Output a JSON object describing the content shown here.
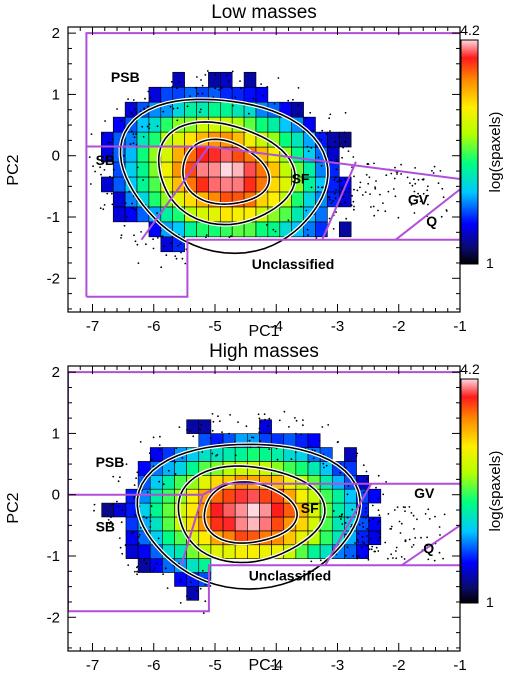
{
  "chart_data": [
    {
      "type": "heatmap",
      "title": "Low masses",
      "xlabel": "PC1",
      "ylabel": "PC2",
      "xlim": [
        -7.4,
        -1.0
      ],
      "ylim": [
        -2.55,
        2.1
      ],
      "xticks": [
        "-7",
        "-6",
        "-5",
        "-4",
        "-3",
        "-2",
        "-1"
      ],
      "yticks": [
        "-2",
        "-1",
        "0",
        "1",
        "2"
      ],
      "colorbar": {
        "label": "log(spaxels)",
        "min_label": "1",
        "max_label": "4.2",
        "min": 1,
        "max": 4.2
      },
      "density_peak": {
        "x": -4.85,
        "y": -0.28
      },
      "regions": [
        {
          "name": "PSB",
          "label_x": -6.7,
          "label_y": 1.2
        },
        {
          "name": "SB",
          "label_x": -6.95,
          "label_y": -0.15
        },
        {
          "name": "SF",
          "label_x": -3.75,
          "label_y": -0.45
        },
        {
          "name": "GV",
          "label_x": -1.85,
          "label_y": -0.8
        },
        {
          "name": "Q",
          "label_x": -1.55,
          "label_y": -1.15
        },
        {
          "name": "Unclassified",
          "label_x": -4.4,
          "label_y": -1.85
        }
      ],
      "boundaries": [
        {
          "kind": "outer",
          "points": [
            [
              -7.1,
              -2.3
            ],
            [
              -7.1,
              2.0
            ],
            [
              -1.0,
              2.0
            ]
          ]
        },
        {
          "kind": "lower-left",
          "points": [
            [
              -7.1,
              -2.3
            ],
            [
              -5.45,
              -2.3
            ],
            [
              -5.45,
              -1.37
            ],
            [
              -1.0,
              -1.37
            ]
          ]
        },
        {
          "kind": "psb-sb",
          "points": [
            [
              -7.1,
              0.15
            ],
            [
              -5.1,
              0.15
            ]
          ]
        },
        {
          "kind": "sf-top",
          "points": [
            [
              -5.1,
              0.15
            ],
            [
              -1.0,
              -0.38
            ]
          ]
        },
        {
          "kind": "sf-left",
          "points": [
            [
              -5.1,
              0.15
            ],
            [
              -6.2,
              -1.37
            ]
          ]
        },
        {
          "kind": "sf-gv",
          "points": [
            [
              -3.25,
              -1.37
            ],
            [
              -2.7,
              -0.1
            ]
          ]
        },
        {
          "kind": "gv-q",
          "points": [
            [
              -2.05,
              -1.37
            ],
            [
              -1.0,
              -0.55
            ]
          ]
        }
      ]
    },
    {
      "type": "heatmap",
      "title": "High masses",
      "xlabel": "PC1",
      "ylabel": "PC2",
      "xlim": [
        -7.4,
        -1.0
      ],
      "ylim": [
        -2.55,
        2.1
      ],
      "xticks": [
        "-7",
        "-6",
        "-5",
        "-4",
        "-3",
        "-2",
        "-1"
      ],
      "yticks": [
        "-2",
        "-1",
        "0",
        "1",
        "2"
      ],
      "colorbar": {
        "label": "log(spaxels)",
        "min_label": "1",
        "max_label": "4.2",
        "min": 1,
        "max": 4.2
      },
      "density_peak": {
        "x": -4.45,
        "y": -0.3
      },
      "regions": [
        {
          "name": "PSB",
          "label_x": -6.95,
          "label_y": 0.45
        },
        {
          "name": "SB",
          "label_x": -6.95,
          "label_y": -0.6
        },
        {
          "name": "SF",
          "label_x": -3.6,
          "label_y": -0.3
        },
        {
          "name": "GV",
          "label_x": -1.75,
          "label_y": -0.05
        },
        {
          "name": "Q",
          "label_x": -1.6,
          "label_y": -0.95
        },
        {
          "name": "Unclassified",
          "label_x": -4.45,
          "label_y": -1.4
        }
      ],
      "boundaries": [
        {
          "kind": "outer",
          "points": [
            [
              -7.4,
              -1.9
            ],
            [
              -7.4,
              2.0
            ],
            [
              -1.0,
              2.0
            ]
          ]
        },
        {
          "kind": "lower-left",
          "points": [
            [
              -7.4,
              -1.9
            ],
            [
              -5.1,
              -1.9
            ],
            [
              -5.1,
              -1.15
            ],
            [
              -1.0,
              -1.15
            ]
          ]
        },
        {
          "kind": "psb-sb",
          "points": [
            [
              -7.4,
              0.0
            ],
            [
              -5.2,
              0.0
            ]
          ]
        },
        {
          "kind": "sf-top",
          "points": [
            [
              -5.2,
              0.0
            ],
            [
              -4.85,
              0.18
            ],
            [
              -1.0,
              0.18
            ]
          ]
        },
        {
          "kind": "sf-left",
          "points": [
            [
              -5.2,
              0.0
            ],
            [
              -5.55,
              -1.15
            ]
          ]
        },
        {
          "kind": "sf-gv",
          "points": [
            [
              -3.2,
              -1.15
            ],
            [
              -2.45,
              0.18
            ]
          ]
        },
        {
          "kind": "gv-q",
          "points": [
            [
              -1.95,
              -1.15
            ],
            [
              -1.0,
              -0.5
            ]
          ]
        }
      ]
    }
  ]
}
